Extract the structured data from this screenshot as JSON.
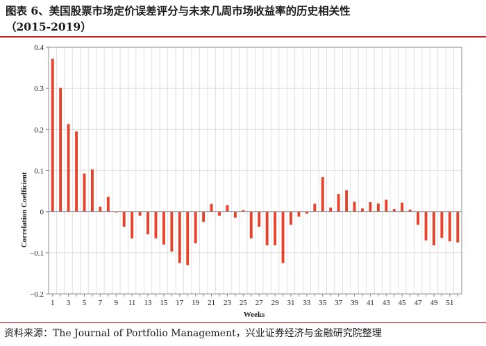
{
  "title": "图表 6、美国股票市场定价误差评分与未来几周市场收益率的历史相关性",
  "subtitle": "（2015-2019）",
  "source": "资料来源：The Journal of Portfolio Management，兴业证券经济与金融研究院整理",
  "colors": {
    "bar": "#e8422a",
    "grid": "#d9d9d9",
    "rule": "#c8202a",
    "axis": "#8c8c8c"
  },
  "chart_data": {
    "type": "bar",
    "xlabel": "Weeks",
    "ylabel": "Correlation Coefficient",
    "ylim": [
      -0.2,
      0.4
    ],
    "yticks": [
      0.4,
      0.3,
      0.2,
      0.1,
      0,
      -0.1,
      -0.2
    ],
    "ytick_labels": [
      "0.4",
      "0.3",
      "0.2",
      "0.1",
      "0",
      "−0.1",
      "−0.2"
    ],
    "xtick_labels": [
      "1",
      "3",
      "5",
      "7",
      "9",
      "11",
      "13",
      "15",
      "17",
      "19",
      "21",
      "23",
      "25",
      "27",
      "29",
      "31",
      "33",
      "35",
      "37",
      "39",
      "41",
      "43",
      "45",
      "47",
      "49",
      "51"
    ],
    "grid": true,
    "categories": [
      1,
      2,
      3,
      4,
      5,
      6,
      7,
      8,
      9,
      10,
      11,
      12,
      13,
      14,
      15,
      16,
      17,
      18,
      19,
      20,
      21,
      22,
      23,
      24,
      25,
      26,
      27,
      28,
      29,
      30,
      31,
      32,
      33,
      34,
      35,
      36,
      37,
      38,
      39,
      40,
      41,
      42,
      43,
      44,
      45,
      46,
      47,
      48,
      49,
      50,
      51,
      52
    ],
    "values": [
      0.372,
      0.301,
      0.213,
      0.195,
      0.093,
      0.103,
      0.012,
      0.036,
      -0.002,
      -0.037,
      -0.065,
      -0.01,
      -0.055,
      -0.065,
      -0.08,
      -0.097,
      -0.125,
      -0.13,
      -0.077,
      -0.025,
      0.019,
      -0.01,
      0.016,
      -0.015,
      0.004,
      -0.065,
      -0.037,
      -0.082,
      -0.082,
      -0.125,
      -0.032,
      -0.012,
      -0.005,
      0.019,
      0.084,
      0.01,
      0.043,
      0.052,
      0.024,
      0.008,
      0.023,
      0.02,
      0.029,
      0.006,
      0.022,
      0.005,
      -0.032,
      -0.07,
      -0.082,
      -0.064,
      -0.072,
      -0.075
    ]
  }
}
